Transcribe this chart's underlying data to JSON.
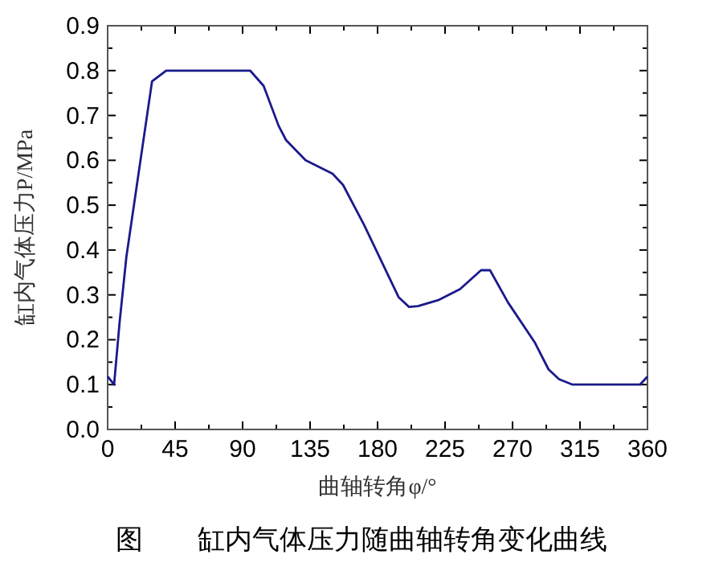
{
  "chart_data": {
    "type": "line",
    "xlabel": "曲轴转角φ/°",
    "ylabel": "缸内气体压力P/MPa",
    "annotations": [
      "图　　缸内气体压力随曲轴转角变化曲线"
    ],
    "x": [
      0,
      4.3,
      8,
      12.5,
      29.6,
      39,
      95,
      104,
      114,
      119,
      132,
      150,
      157,
      171,
      194,
      201,
      207,
      221,
      235,
      249,
      255,
      267,
      285,
      294,
      301,
      310,
      355,
      360
    ],
    "series": [
      {
        "color": "#1a1a8c",
        "values": [
          0.118,
          0.1,
          0.24,
          0.385,
          0.776,
          0.8,
          0.8,
          0.766,
          0.677,
          0.645,
          0.6,
          0.57,
          0.545,
          0.456,
          0.295,
          0.273,
          0.275,
          0.289,
          0.313,
          0.355,
          0.355,
          0.283,
          0.193,
          0.134,
          0.112,
          0.1,
          0.1,
          0.118
        ]
      }
    ],
    "xlim": [
      0,
      360
    ],
    "xticks": [
      0,
      45,
      90,
      135,
      180,
      225,
      270,
      315,
      360
    ],
    "ylim": [
      0,
      0.9
    ],
    "yticks": [
      "0.0",
      0.1,
      0.2,
      0.3,
      0.4,
      0.5,
      0.6,
      0.7,
      0.8,
      0.9
    ],
    "grid": false,
    "marker": "none",
    "line_style": "solid"
  }
}
